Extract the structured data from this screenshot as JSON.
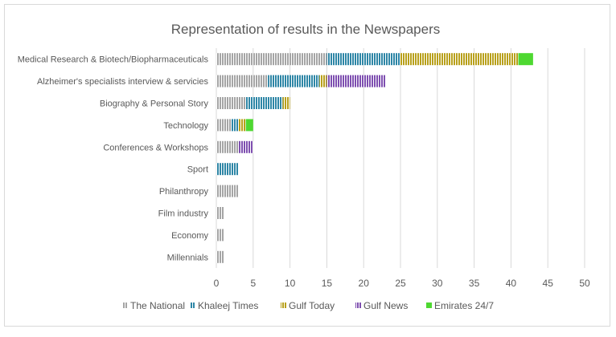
{
  "chart_data": {
    "type": "bar",
    "orientation": "horizontal",
    "stacked": true,
    "title": "Representation of results in the Newspapers",
    "xlabel": "",
    "ylabel": "",
    "xlim": [
      0,
      50
    ],
    "x_ticks": [
      0,
      5,
      10,
      15,
      20,
      25,
      30,
      35,
      40,
      45,
      50
    ],
    "grid": true,
    "legend_position": "bottom",
    "categories": [
      "Medical Research & Biotech/Biopharmaceuticals",
      "Alzheimer's specialists interview & servicies",
      "Biography & Personal Story",
      "Technology",
      "Conferences & Workshops",
      "Sport",
      "Philanthropy",
      "Film industry",
      "Economy",
      "Millennials"
    ],
    "series": [
      {
        "name": "The National",
        "color": "#a5a5a5",
        "pattern": "vertical-stripes",
        "values": [
          15,
          7,
          4,
          2,
          3,
          0,
          3,
          1,
          1,
          1
        ]
      },
      {
        "name": "Khaleej Times",
        "color": "#2e86a6",
        "pattern": "vertical-stripes",
        "values": [
          10,
          7,
          5,
          1,
          0,
          3,
          0,
          0,
          0,
          0
        ]
      },
      {
        "name": "Gulf Today",
        "color": "#b8a01b",
        "pattern": "vertical-stripes",
        "values": [
          16,
          1,
          1,
          1,
          0,
          0,
          0,
          0,
          0,
          0
        ]
      },
      {
        "name": "Gulf News",
        "color": "#7e4fb0",
        "pattern": "vertical-stripes",
        "values": [
          0,
          8,
          0,
          0,
          2,
          0,
          0,
          0,
          0,
          0
        ]
      },
      {
        "name": "Emirates 24/7",
        "color": "#4ed831",
        "pattern": "solid",
        "values": [
          2,
          0,
          0,
          1,
          0,
          0,
          0,
          0,
          0,
          0
        ]
      }
    ]
  }
}
